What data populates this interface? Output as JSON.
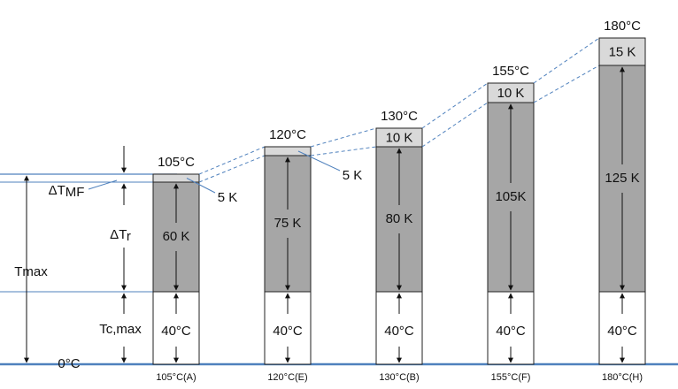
{
  "left_labels": {
    "delta_t": "ΔT",
    "mf": "MF",
    "delta_tr": "ΔT",
    "r": "r",
    "tmax": "Tmax",
    "tcmax": "Tc,max",
    "zero": "0°C"
  },
  "columns": [
    {
      "max": "105°C",
      "margin": "5 K",
      "rise": "60 K",
      "ambient": "40°C",
      "class": "105°C(A)"
    },
    {
      "max": "120°C",
      "margin": "5 K",
      "rise": "75 K",
      "ambient": "40°C",
      "class": "120°C(E)"
    },
    {
      "max": "130°C",
      "margin": "10 K",
      "rise": "80 K",
      "ambient": "40°C",
      "class": "130°C(B)"
    },
    {
      "max": "155°C",
      "margin": "10 K",
      "rise": "105K",
      "ambient": "40°C",
      "class": "155°C(F)"
    },
    {
      "max": "180°C",
      "margin": "15 K",
      "rise": "125 K",
      "ambient": "40°C",
      "class": "180°C(H)"
    }
  ]
}
